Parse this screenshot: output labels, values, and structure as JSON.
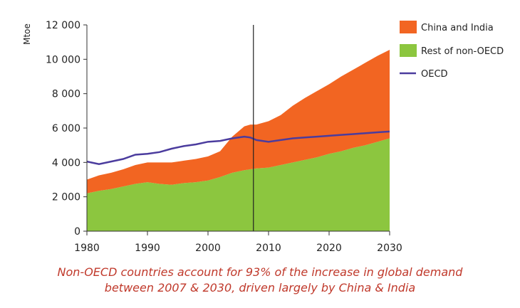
{
  "chart_data": {
    "type": "area",
    "ylabel": "Mtoe",
    "ylim": [
      0,
      12000
    ],
    "yticks": [
      0,
      2000,
      4000,
      6000,
      8000,
      10000,
      12000
    ],
    "ytick_labels": [
      "0",
      "2 000",
      "4 000",
      "6 000",
      "8 000",
      "10 000",
      "12 000"
    ],
    "xlim": [
      1980,
      2030
    ],
    "xticks": [
      1980,
      1990,
      2000,
      2010,
      2020,
      2030
    ],
    "xtick_labels": [
      "1980",
      "1990",
      "2000",
      "2010",
      "2020",
      "2030"
    ],
    "x": [
      1980,
      1982,
      1984,
      1986,
      1988,
      1990,
      1992,
      1994,
      1996,
      1998,
      2000,
      2002,
      2004,
      2006,
      2007,
      2008,
      2010,
      2012,
      2014,
      2016,
      2018,
      2020,
      2022,
      2024,
      2026,
      2028,
      2030
    ],
    "series": [
      {
        "name": "Rest of non-OECD",
        "kind": "stacked-area",
        "color": "#8cc63f",
        "values": [
          2200,
          2350,
          2450,
          2600,
          2750,
          2850,
          2750,
          2700,
          2800,
          2850,
          2950,
          3150,
          3400,
          3550,
          3600,
          3650,
          3700,
          3850,
          4000,
          4150,
          4300,
          4500,
          4650,
          4850,
          5000,
          5200,
          5400
        ]
      },
      {
        "name": "China and India",
        "kind": "stacked-area",
        "color": "#f26522",
        "values": [
          800,
          900,
          950,
          1000,
          1100,
          1150,
          1250,
          1300,
          1300,
          1350,
          1400,
          1500,
          2100,
          2550,
          2600,
          2550,
          2700,
          2900,
          3300,
          3600,
          3850,
          4050,
          4350,
          4550,
          4800,
          5000,
          5150
        ]
      },
      {
        "name": "OECD",
        "kind": "line",
        "color": "#4b3c9e",
        "values": [
          4050,
          3900,
          4050,
          4200,
          4450,
          4500,
          4600,
          4800,
          4950,
          5050,
          5200,
          5250,
          5400,
          5500,
          5450,
          5300,
          5200,
          5300,
          5400,
          5450,
          5500,
          5550,
          5600,
          5650,
          5700,
          5750,
          5800
        ]
      }
    ],
    "reference_line_x": 2007.5,
    "legend": "top-right",
    "grid": false
  },
  "caption": {
    "line1": "Non-OECD countries account for 93% of the increase in global demand",
    "line2": "between 2007 & 2030, driven largely by China & India"
  }
}
